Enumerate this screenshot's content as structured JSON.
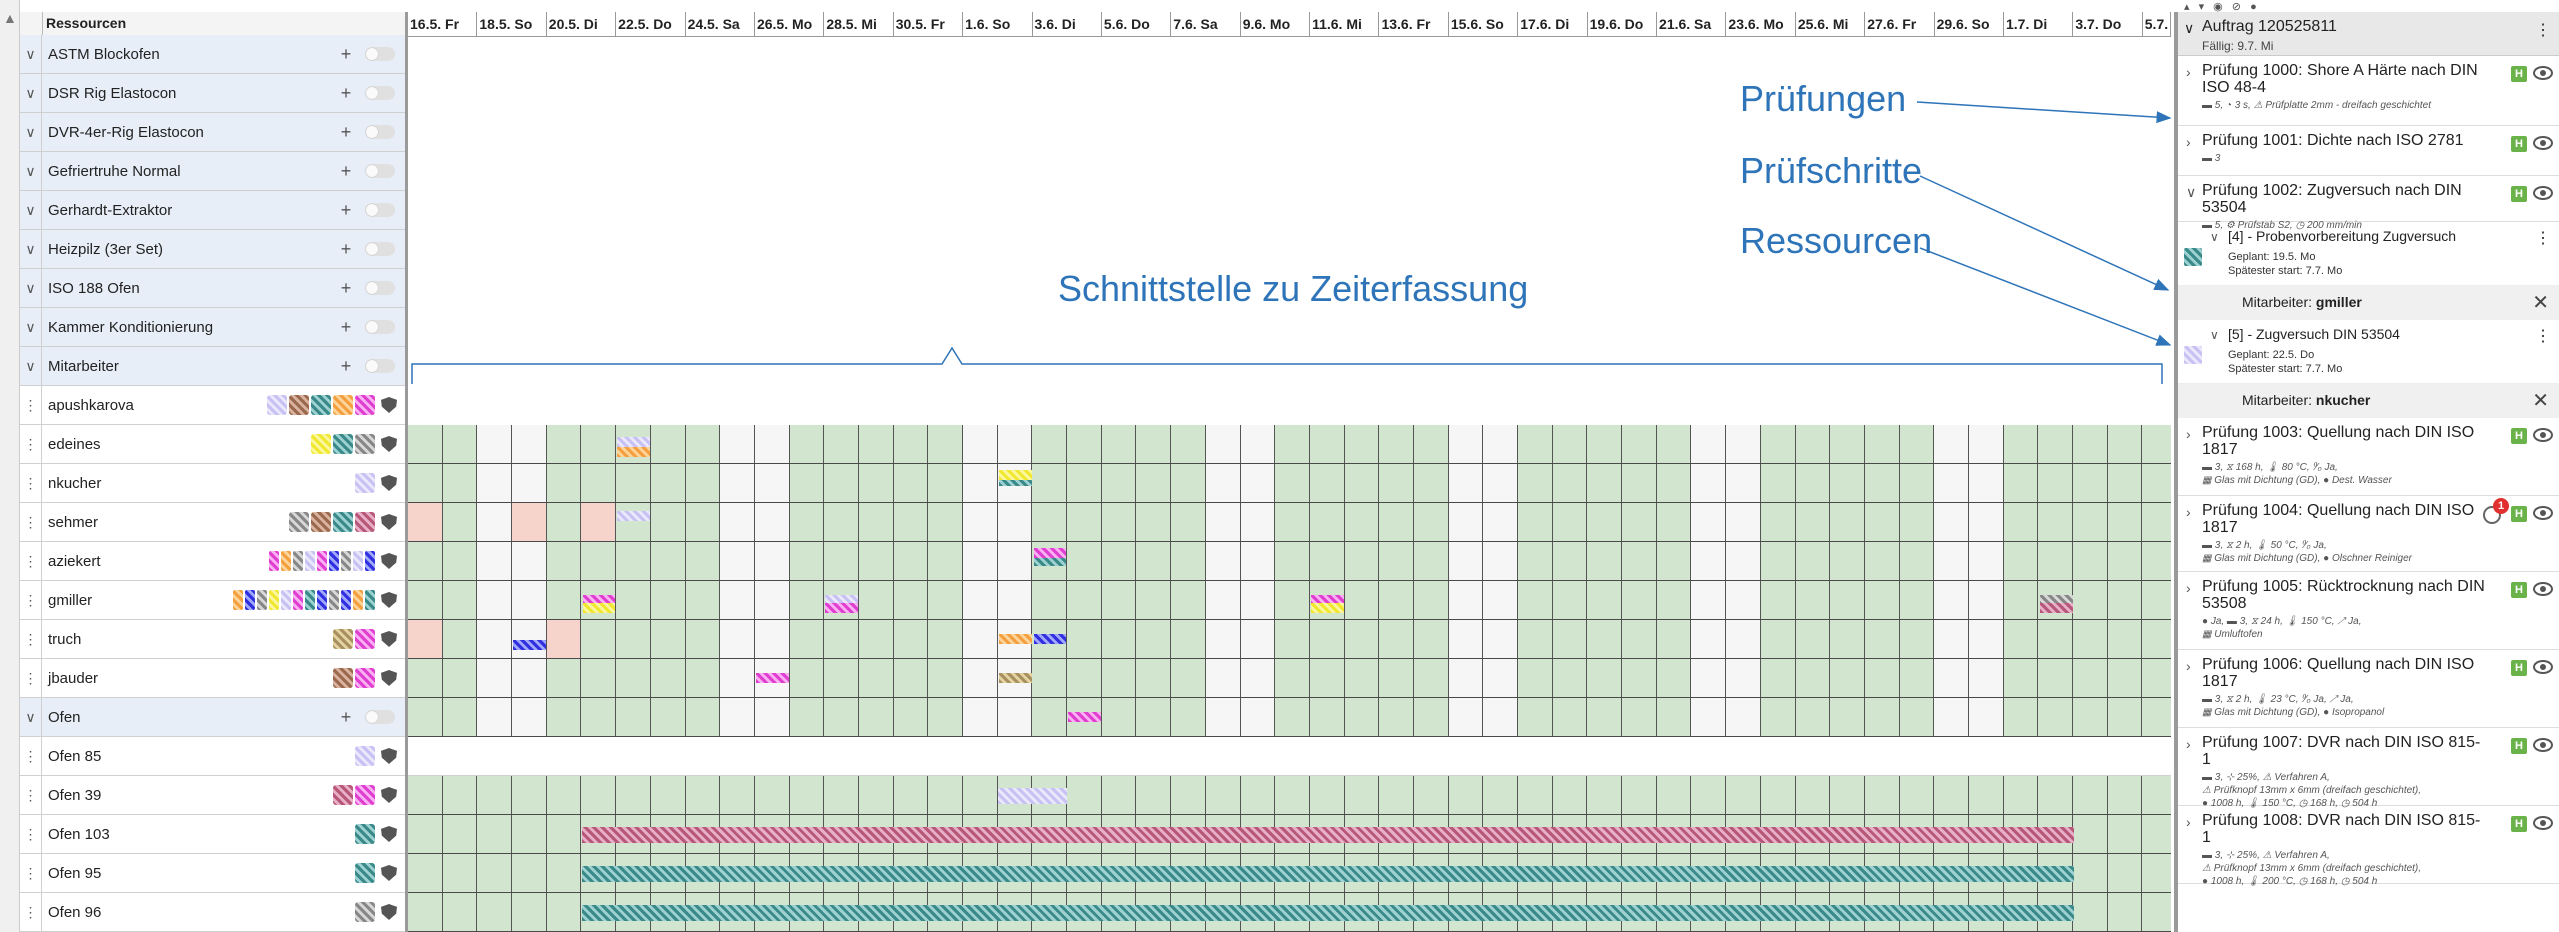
{
  "resources_header": "Ressourcen",
  "colors": {
    "work_day": "#d2e6cf",
    "free_day": "#f6f6f6",
    "absence": "#f6d4cc",
    "annotation": "#2e74b8",
    "group_row": "#e8eef8"
  },
  "dates": [
    "16.5. Fr",
    "18.5. So",
    "20.5. Di",
    "22.5. Do",
    "24.5. Sa",
    "26.5. Mo",
    "28.5. Mi",
    "30.5. Fr",
    "1.6. So",
    "3.6. Di",
    "5.6. Do",
    "7.6. Sa",
    "9.6. Mo",
    "11.6. Mi",
    "13.6. Fr",
    "15.6. So",
    "17.6. Di",
    "19.6. Do",
    "21.6. Sa",
    "23.6. Mo",
    "25.6. Mi",
    "27.6. Fr",
    "29.6. So",
    "1.7. Di",
    "3.7. Do",
    "5.7."
  ],
  "groups": [
    "ASTM Blockofen",
    "DSR Rig Elastocon",
    "DVR-4er-Rig Elastocon",
    "Gefriertruhe Normal",
    "Gerhardt-Extraktor",
    "Heizpilz (3er Set)",
    "ISO 188 Ofen",
    "Kammer Konditionierung",
    "Mitarbeiter"
  ],
  "employees": [
    "apushkarova",
    "edeines",
    "nkucher",
    "sehmer",
    "aziekert",
    "gmiller",
    "truch",
    "jbauder"
  ],
  "ofen_group": "Ofen",
  "ofens": [
    "Ofen 85",
    "Ofen 39",
    "Ofen 103",
    "Ofen 95",
    "Ofen 96"
  ],
  "annotations": {
    "zeiterfassung": "Schnittstelle zu Zeiterfassung",
    "pruefungen": "Prüfungen",
    "pruefschritte": "Prüfschritte",
    "ressourcen": "Ressourcen"
  },
  "order": {
    "title": "Auftrag 120525811",
    "due": "Fällig: 9.7. Mi"
  },
  "tests": [
    {
      "title": "Prüfung 1000: Shore A Härte nach DIN ISO 48-4",
      "meta": "▬ 5, ◔ 3 s, ⚠ Prüfplatte 2mm - dreifach geschichtet",
      "badge": "H"
    },
    {
      "title": "Prüfung 1001: Dichte nach ISO 2781",
      "meta": "▬ 3",
      "badge": "H"
    },
    {
      "title": "Prüfung 1002: Zugversuch nach DIN 53504",
      "meta": "▬ 5, ⚙ Prüfstab S2, ◷ 200 mm/min",
      "badge": "H"
    },
    {
      "title": "Prüfung 1003: Quellung nach DIN ISO 1817",
      "meta": "▬ 3, ⧖ 168 h, 🌡 80 °C, ⁰⁄₀ Ja,\n▦ Glas mit Dichtung (GD), ● Dest. Wasser",
      "badge": "H"
    },
    {
      "title": "Prüfung 1004: Quellung nach DIN ISO 1817",
      "meta": "▬ 3, ⧖ 2 h, 🌡 50 °C, ⁰⁄₀ Ja,\n▦ Glas mit Dichtung (GD), ● Olschner Reiniger",
      "badge": "H",
      "alert": "1"
    },
    {
      "title": "Prüfung 1005: Rücktrocknung nach DIN 53508",
      "meta": "● Ja, ▬ 3, ⧖ 24 h, 🌡 150 °C, ↗ Ja,\n▦ Umluftofen",
      "badge": "H"
    },
    {
      "title": "Prüfung 1006: Quellung nach DIN ISO 1817",
      "meta": "▬ 3, ⧖ 2 h, 🌡 23 °C, ⁰⁄₀ Ja, ↗ Ja,\n▦ Glas mit Dichtung (GD), ● Isopropanol",
      "badge": "H"
    },
    {
      "title": "Prüfung 1007: DVR nach DIN ISO 815-1",
      "meta": "▬ 3, ⊹ 25%, ⚠ Verfahren A,\n⚠ Prüfknopf 13mm x 6mm (dreifach geschichtet),\n● 1008 h, 🌡 150 °C, ◷ 168 h, ◷ 504 h",
      "badge": "H"
    },
    {
      "title": "Prüfung 1008: DVR nach DIN ISO 815-1",
      "meta": "▬ 3, ⊹ 25%, ⚠ Verfahren A,\n⚠ Prüfknopf 13mm x 6mm (dreifach geschichtet),\n● 1008 h, 🌡 200 °C, ◷ 168 h, ◷ 504 h",
      "badge": "H"
    }
  ],
  "steps": [
    {
      "title": "[4] - Probenvorbereitung Zugversuch",
      "planned": "Geplant: 19.5. Mo",
      "latest": "Spätester start: 7.7. Mo",
      "assign_label": "Mitarbeiter:",
      "assignee": "gmiller"
    },
    {
      "title": "[5] - Zugversuch DIN 53504",
      "planned": "Geplant: 22.5. Do",
      "latest": "Spätester start: 7.7. Mo",
      "assign_label": "Mitarbeiter:",
      "assignee": "nkucher"
    }
  ]
}
